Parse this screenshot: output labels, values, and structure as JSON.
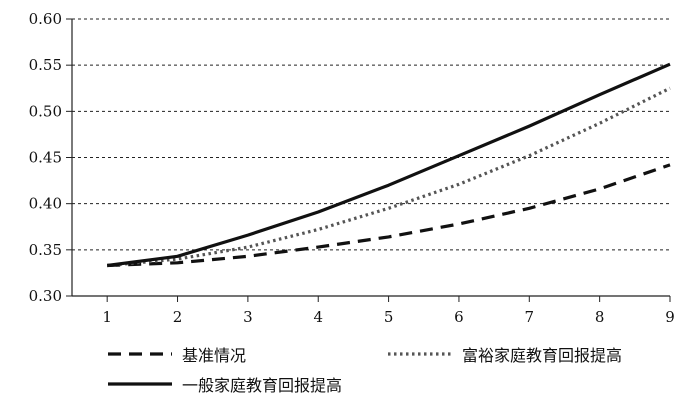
{
  "chart_data": {
    "type": "line",
    "x": [
      1,
      2,
      3,
      4,
      5,
      6,
      7,
      8,
      9
    ],
    "xlim": [
      0.5,
      9
    ],
    "ylim": [
      0.3,
      0.6
    ],
    "yticks": [
      "0.30",
      "0.35",
      "0.40",
      "0.45",
      "0.50",
      "0.55",
      "0.60"
    ],
    "xticks": [
      "1",
      "2",
      "3",
      "4",
      "5",
      "6",
      "7",
      "8",
      "9"
    ],
    "grid": "horizontal-dashed",
    "legend_position": "bottom",
    "series": [
      {
        "name": "基准情况",
        "style": "dashed",
        "color": "#111111",
        "values": [
          0.333,
          0.336,
          0.343,
          0.353,
          0.364,
          0.378,
          0.395,
          0.416,
          0.442
        ]
      },
      {
        "name": "富裕家庭教育回报提高",
        "style": "dotted",
        "color": "#555555",
        "values": [
          0.333,
          0.34,
          0.353,
          0.372,
          0.395,
          0.421,
          0.452,
          0.487,
          0.525
        ]
      },
      {
        "name": "一般家庭教育回报提高",
        "style": "solid",
        "color": "#111111",
        "values": [
          0.333,
          0.343,
          0.366,
          0.391,
          0.42,
          0.452,
          0.484,
          0.518,
          0.551
        ]
      }
    ]
  }
}
